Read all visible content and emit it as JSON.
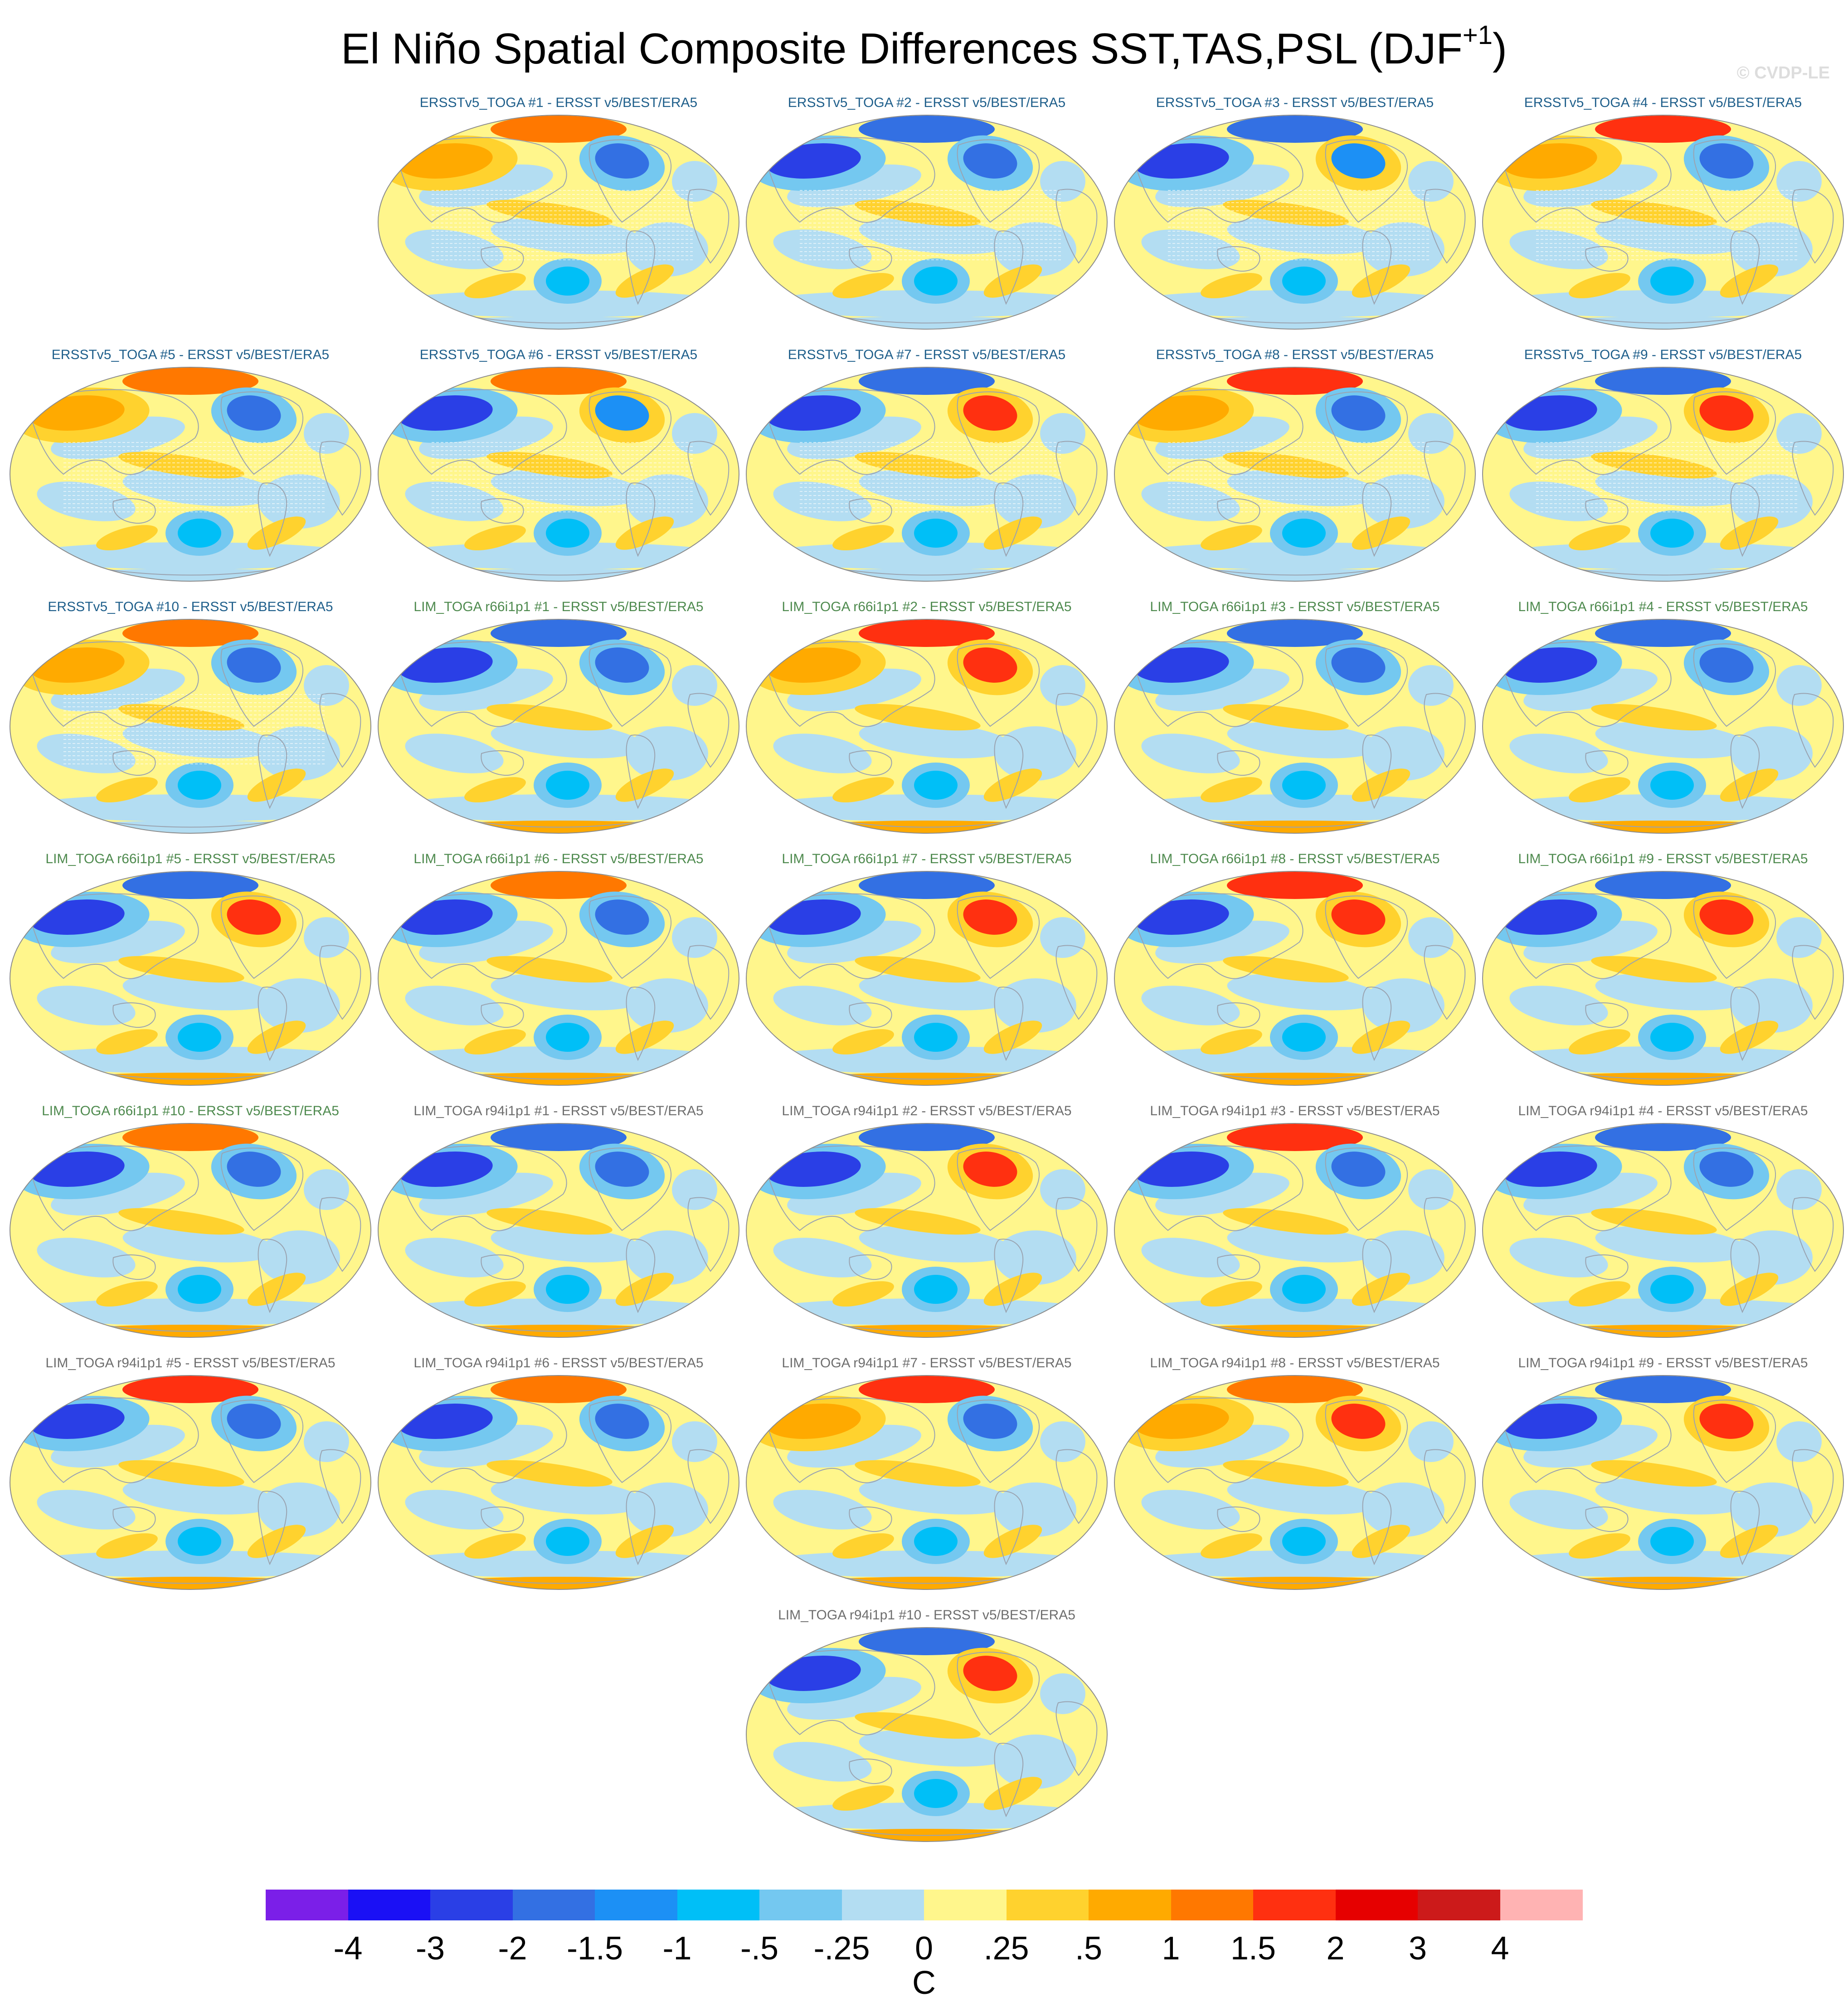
{
  "title": "El Niño Spatial Composite Differences SST,TAS,PSL (DJF",
  "title_superscript": "+1",
  "title_close": ")",
  "copyright": "© CVDP-LE",
  "panels": [
    {
      "title": "ERSSTv5_TOGA #1 - ERSST v5/BEST/ERA5",
      "title_color": "#1f5f8b",
      "hatched": true,
      "arctic": "mixed",
      "asia": "warm",
      "namerica": "cold"
    },
    {
      "title": "ERSSTv5_TOGA #2 - ERSST v5/BEST/ERA5",
      "title_color": "#1f5f8b",
      "hatched": true,
      "arctic": "cold",
      "asia": "cold",
      "namerica": "cold"
    },
    {
      "title": "ERSSTv5_TOGA #3 - ERSST v5/BEST/ERA5",
      "title_color": "#1f5f8b",
      "hatched": true,
      "arctic": "cold",
      "asia": "cold",
      "namerica": "mixed"
    },
    {
      "title": "ERSSTv5_TOGA #4 - ERSST v5/BEST/ERA5",
      "title_color": "#1f5f8b",
      "hatched": true,
      "arctic": "warm",
      "asia": "warm",
      "namerica": "cold"
    },
    {
      "title": "ERSSTv5_TOGA #5 - ERSST v5/BEST/ERA5",
      "title_color": "#1f5f8b",
      "hatched": true,
      "arctic": "mixed",
      "asia": "warm",
      "namerica": "cold"
    },
    {
      "title": "ERSSTv5_TOGA #6 - ERSST v5/BEST/ERA5",
      "title_color": "#1f5f8b",
      "hatched": true,
      "arctic": "mixed",
      "asia": "cold",
      "namerica": "mixed"
    },
    {
      "title": "ERSSTv5_TOGA #7 - ERSST v5/BEST/ERA5",
      "title_color": "#1f5f8b",
      "hatched": true,
      "arctic": "cold",
      "asia": "cold",
      "namerica": "warm"
    },
    {
      "title": "ERSSTv5_TOGA #8 - ERSST v5/BEST/ERA5",
      "title_color": "#1f5f8b",
      "hatched": true,
      "arctic": "warm",
      "asia": "warm",
      "namerica": "cold"
    },
    {
      "title": "ERSSTv5_TOGA #9 - ERSST v5/BEST/ERA5",
      "title_color": "#1f5f8b",
      "hatched": true,
      "arctic": "cold",
      "asia": "cold",
      "namerica": "warm"
    },
    {
      "title": "ERSSTv5_TOGA #10 - ERSST v5/BEST/ERA5",
      "title_color": "#1f5f8b",
      "hatched": true,
      "arctic": "mixed",
      "asia": "warm",
      "namerica": "cold"
    },
    {
      "title": "LIM_TOGA r66i1p1 #1 - ERSST v5/BEST/ERA5",
      "title_color": "#4e8a4e",
      "hatched": false,
      "arctic": "cold",
      "asia": "cold",
      "namerica": "cold"
    },
    {
      "title": "LIM_TOGA r66i1p1 #2 - ERSST v5/BEST/ERA5",
      "title_color": "#4e8a4e",
      "hatched": false,
      "arctic": "warm",
      "asia": "warm",
      "namerica": "warm"
    },
    {
      "title": "LIM_TOGA r66i1p1 #3 - ERSST v5/BEST/ERA5",
      "title_color": "#4e8a4e",
      "hatched": false,
      "arctic": "cold",
      "asia": "cold",
      "namerica": "cold"
    },
    {
      "title": "LIM_TOGA r66i1p1 #4 - ERSST v5/BEST/ERA5",
      "title_color": "#4e8a4e",
      "hatched": false,
      "arctic": "cold",
      "asia": "cold",
      "namerica": "cold"
    },
    {
      "title": "LIM_TOGA r66i1p1 #5 - ERSST v5/BEST/ERA5",
      "title_color": "#4e8a4e",
      "hatched": false,
      "arctic": "cold",
      "asia": "cold",
      "namerica": "warm"
    },
    {
      "title": "LIM_TOGA r66i1p1 #6 - ERSST v5/BEST/ERA5",
      "title_color": "#4e8a4e",
      "hatched": false,
      "arctic": "mixed",
      "asia": "cold",
      "namerica": "cold"
    },
    {
      "title": "LIM_TOGA r66i1p1 #7 - ERSST v5/BEST/ERA5",
      "title_color": "#4e8a4e",
      "hatched": false,
      "arctic": "cold",
      "asia": "cold",
      "namerica": "warm"
    },
    {
      "title": "LIM_TOGA r66i1p1 #8 - ERSST v5/BEST/ERA5",
      "title_color": "#4e8a4e",
      "hatched": false,
      "arctic": "warm",
      "asia": "cold",
      "namerica": "warm"
    },
    {
      "title": "LIM_TOGA r66i1p1 #9 - ERSST v5/BEST/ERA5",
      "title_color": "#4e8a4e",
      "hatched": false,
      "arctic": "cold",
      "asia": "cold",
      "namerica": "warm"
    },
    {
      "title": "LIM_TOGA r66i1p1 #10 - ERSST v5/BEST/ERA5",
      "title_color": "#4e8a4e",
      "hatched": false,
      "arctic": "mixed",
      "asia": "cold",
      "namerica": "cold"
    },
    {
      "title": "LIM_TOGA r94i1p1 #1 - ERSST v5/BEST/ERA5",
      "title_color": "#6e6e6e",
      "hatched": false,
      "arctic": "cold",
      "asia": "cold",
      "namerica": "cold"
    },
    {
      "title": "LIM_TOGA r94i1p1 #2 - ERSST v5/BEST/ERA5",
      "title_color": "#6e6e6e",
      "hatched": false,
      "arctic": "cold",
      "asia": "cold",
      "namerica": "warm"
    },
    {
      "title": "LIM_TOGA r94i1p1 #3 - ERSST v5/BEST/ERA5",
      "title_color": "#6e6e6e",
      "hatched": false,
      "arctic": "warm",
      "asia": "cold",
      "namerica": "cold"
    },
    {
      "title": "LIM_TOGA r94i1p1 #4 - ERSST v5/BEST/ERA5",
      "title_color": "#6e6e6e",
      "hatched": false,
      "arctic": "cold",
      "asia": "cold",
      "namerica": "cold"
    },
    {
      "title": "LIM_TOGA r94i1p1 #5 - ERSST v5/BEST/ERA5",
      "title_color": "#6e6e6e",
      "hatched": false,
      "arctic": "warm",
      "asia": "cold",
      "namerica": "cold"
    },
    {
      "title": "LIM_TOGA r94i1p1 #6 - ERSST v5/BEST/ERA5",
      "title_color": "#6e6e6e",
      "hatched": false,
      "arctic": "mixed",
      "asia": "cold",
      "namerica": "cold"
    },
    {
      "title": "LIM_TOGA r94i1p1 #7 - ERSST v5/BEST/ERA5",
      "title_color": "#6e6e6e",
      "hatched": false,
      "arctic": "warm",
      "asia": "warm",
      "namerica": "cold"
    },
    {
      "title": "LIM_TOGA r94i1p1 #8 - ERSST v5/BEST/ERA5",
      "title_color": "#6e6e6e",
      "hatched": false,
      "arctic": "mixed",
      "asia": "warm",
      "namerica": "warm"
    },
    {
      "title": "LIM_TOGA r94i1p1 #9 - ERSST v5/BEST/ERA5",
      "title_color": "#6e6e6e",
      "hatched": false,
      "arctic": "cold",
      "asia": "cold",
      "namerica": "warm"
    },
    {
      "title": "LIM_TOGA r94i1p1 #10 - ERSST v5/BEST/ERA5",
      "title_color": "#6e6e6e",
      "hatched": false,
      "arctic": "cold",
      "asia": "cold",
      "namerica": "warm"
    }
  ],
  "colorbar": {
    "unit": "C",
    "tick_labels": [
      "-4",
      "-3",
      "-2",
      "-1.5",
      "-1",
      "-.5",
      "-.25",
      "0",
      ".25",
      ".5",
      "1",
      "1.5",
      "2",
      "3",
      "4"
    ],
    "colors": [
      "#7b1fe8",
      "#1a10f5",
      "#2a3fe6",
      "#3370e3",
      "#1c90f5",
      "#00bff7",
      "#74c8f0",
      "#b3ddf2",
      "#fff68c",
      "#ffd22e",
      "#ffaa00",
      "#ff7800",
      "#ff3010",
      "#e60000",
      "#cc1a1a",
      "#ffb3b3"
    ]
  }
}
